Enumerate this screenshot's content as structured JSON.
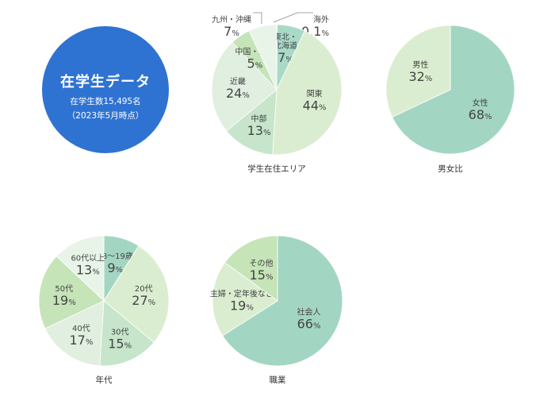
{
  "summary": {
    "title": "在学生データ",
    "count": "在学生数15,495名",
    "date": "（2023年5月時点）",
    "color": "#2f73d2"
  },
  "chart_data": [
    {
      "type": "pie",
      "title": "学生在住エリア",
      "slices": [
        {
          "label": "海外",
          "value": 0.1,
          "color": "#6cc07a"
        },
        {
          "label": "東北・北海道",
          "value": 7,
          "color": "#a9dac8"
        },
        {
          "label": "関東",
          "value": 44,
          "color": "#dbedd0"
        },
        {
          "label": "中部",
          "value": 13,
          "color": "#c6e5ca"
        },
        {
          "label": "近畿",
          "value": 24,
          "color": "#e0efe0"
        },
        {
          "label": "中国・四国",
          "value": 5,
          "color": "#c5e4b8"
        },
        {
          "label": "九州・沖縄",
          "value": 7,
          "color": "#e9f4e9"
        }
      ]
    },
    {
      "type": "pie",
      "title": "男女比",
      "slices": [
        {
          "label": "女性",
          "value": 68,
          "color": "#a3d6c2"
        },
        {
          "label": "男性",
          "value": 32,
          "color": "#dbedd0"
        }
      ]
    },
    {
      "type": "pie",
      "title": "年代",
      "slices": [
        {
          "label": "18〜19歳",
          "value": 9,
          "color": "#a3d6c2"
        },
        {
          "label": "20代",
          "value": 27,
          "color": "#dbedd0"
        },
        {
          "label": "30代",
          "value": 15,
          "color": "#c6e5ca"
        },
        {
          "label": "40代",
          "value": 17,
          "color": "#e0efe0"
        },
        {
          "label": "50代",
          "value": 19,
          "color": "#c5e4b8"
        },
        {
          "label": "60代以上",
          "value": 13,
          "color": "#e9f4e9"
        }
      ]
    },
    {
      "type": "pie",
      "title": "職業",
      "slices": [
        {
          "label": "社会人",
          "value": 66,
          "color": "#a3d6c2"
        },
        {
          "label": "主婦・定年後など",
          "value": 19,
          "color": "#dbedd0"
        },
        {
          "label": "その他",
          "value": 15,
          "color": "#c5e4b8"
        }
      ]
    }
  ]
}
